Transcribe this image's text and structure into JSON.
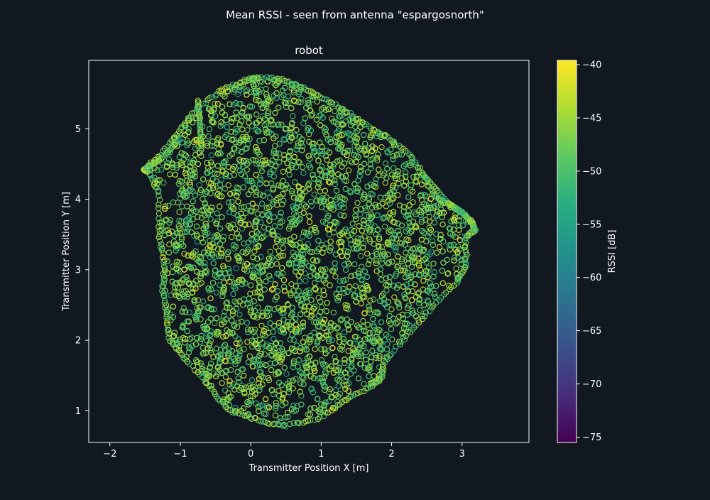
{
  "figure": {
    "suptitle": "Mean RSSI - seen from antenna \"espargosnorth\"",
    "background": "#111820"
  },
  "chart_data": {
    "type": "scatter",
    "title": "robot",
    "xlabel": "Transmitter Position X [m]",
    "ylabel": "Transmitter Position Y [m]",
    "xlim": [
      -2.3,
      3.95
    ],
    "ylim": [
      0.55,
      5.97
    ],
    "xticks": [
      -2,
      -1,
      0,
      1,
      2,
      3
    ],
    "yticks": [
      1,
      2,
      3,
      4,
      5
    ],
    "grid": false,
    "colormap": "viridis",
    "colorbar": {
      "label": "RSSI [dB]",
      "min": -75.5,
      "max": -39.6,
      "ticks": [
        -40,
        -45,
        -50,
        -55,
        -60,
        -65,
        -70,
        -75
      ],
      "tick_labels": [
        "−40",
        "−45",
        "−50",
        "−55",
        "−60",
        "−65",
        "−70",
        "−75"
      ]
    },
    "typical_rssi_range": [
      -52,
      -43
    ],
    "region_outline": [
      [
        0.08,
        5.73
      ],
      [
        0.45,
        5.7
      ],
      [
        0.75,
        5.58
      ],
      [
        1.05,
        5.42
      ],
      [
        1.35,
        5.25
      ],
      [
        1.65,
        5.05
      ],
      [
        1.95,
        4.88
      ],
      [
        2.25,
        4.63
      ],
      [
        2.45,
        4.35
      ],
      [
        2.6,
        4.05
      ],
      [
        2.75,
        3.95
      ],
      [
        2.95,
        3.85
      ],
      [
        3.12,
        3.7
      ],
      [
        3.18,
        3.56
      ],
      [
        3.05,
        3.45
      ],
      [
        3.06,
        3.1
      ],
      [
        2.95,
        2.85
      ],
      [
        2.6,
        2.5
      ],
      [
        2.25,
        2.1
      ],
      [
        1.9,
        1.7
      ],
      [
        1.85,
        1.45
      ],
      [
        1.7,
        1.35
      ],
      [
        1.35,
        1.15
      ],
      [
        0.95,
        0.88
      ],
      [
        0.45,
        0.78
      ],
      [
        0.1,
        0.87
      ],
      [
        -0.3,
        1.0
      ],
      [
        -0.55,
        1.3
      ],
      [
        -0.9,
        1.7
      ],
      [
        -1.15,
        2.0
      ],
      [
        -1.2,
        2.4
      ],
      [
        -1.25,
        2.75
      ],
      [
        -1.22,
        3.05
      ],
      [
        -1.3,
        3.5
      ],
      [
        -1.3,
        4.1
      ],
      [
        -1.45,
        4.4
      ],
      [
        -1.52,
        4.42
      ],
      [
        -1.3,
        4.6
      ],
      [
        -1.0,
        5.0
      ],
      [
        -0.75,
        5.3
      ],
      [
        -0.4,
        5.55
      ],
      [
        -0.1,
        5.68
      ]
    ],
    "trajectory_spurs": [
      [
        [
          -1.52,
          4.42
        ],
        [
          -1.3,
          4.55
        ],
        [
          -1.0,
          4.85
        ]
      ],
      [
        [
          -0.75,
          5.4
        ],
        [
          -0.72,
          5.05
        ],
        [
          -0.7,
          4.7
        ]
      ],
      [
        [
          2.45,
          4.35
        ],
        [
          2.8,
          3.95
        ],
        [
          3.0,
          3.82
        ],
        [
          3.15,
          3.65
        ],
        [
          3.18,
          3.56
        ]
      ]
    ]
  }
}
